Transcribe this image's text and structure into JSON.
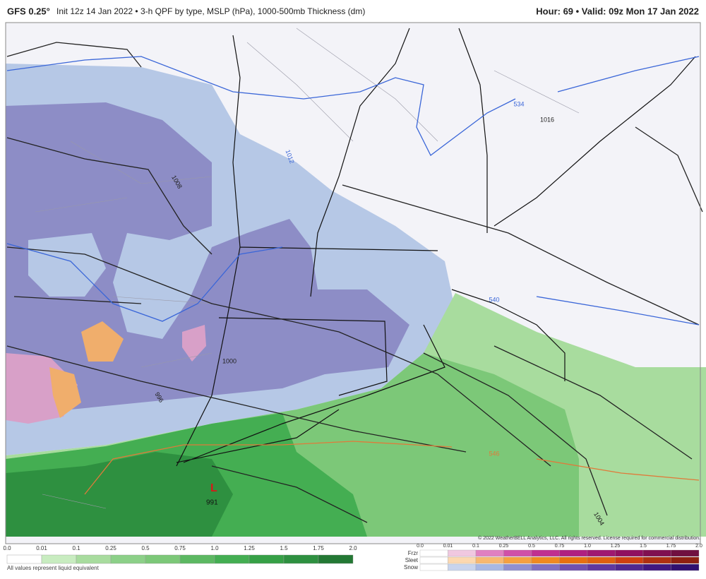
{
  "header": {
    "model": "GFS 0.25°",
    "title": "Init 12z 14 Jan 2022 • 3-h QPF by type, MSLP (hPa), 1000-500mb Thickness (dm)",
    "valid": "Hour: 69 • Valid: 09z Mon 17 Jan 2022"
  },
  "map": {
    "contour_labels": [
      "534",
      "1016",
      "1012",
      "1008",
      "1000",
      "996",
      "546",
      "1004",
      "540"
    ],
    "low": {
      "symbol": "L",
      "pressure": "991"
    },
    "copyright": "© 2022 WeatherBELL Analytics, LLC. All rights reserved. License required for commercial distribution."
  },
  "legend": {
    "rain": {
      "ticks": [
        "0.0",
        "0.01",
        "0.1",
        "0.25",
        "0.5",
        "0.75",
        "1.0",
        "1.25",
        "1.5",
        "1.75",
        "2.0"
      ],
      "note": "All values represent liquid equivalent"
    },
    "ptype": {
      "rows": [
        "Frzr",
        "Sleet",
        "Snow"
      ],
      "ticks": [
        "0.0",
        "0.01",
        "0.1",
        "0.25",
        "0.5",
        "0.75",
        "1.0",
        "1.25",
        "1.5",
        "1.75",
        "2.0"
      ]
    }
  }
}
